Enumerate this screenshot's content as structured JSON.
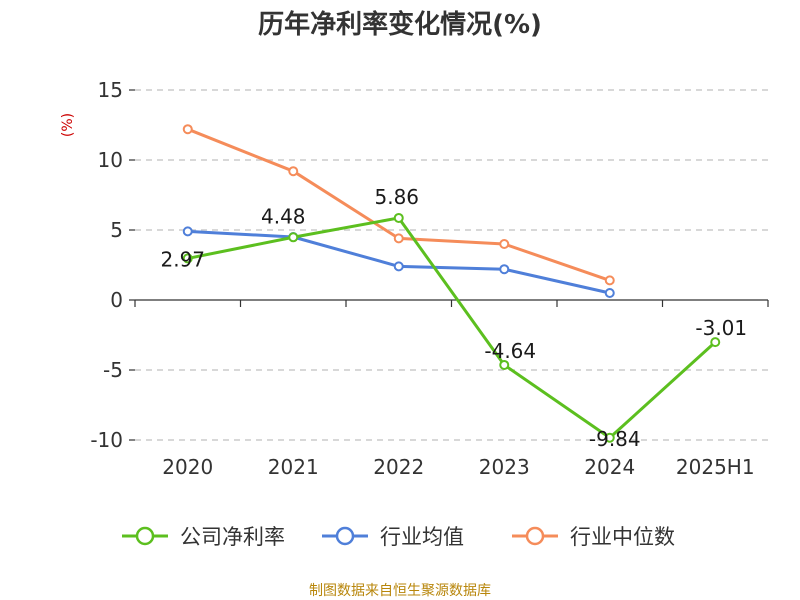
{
  "chart_data": {
    "type": "line",
    "title": "历年净利率变化情况(%)",
    "ylabel": "(%)",
    "categories": [
      "2020",
      "2021",
      "2022",
      "2023",
      "2024",
      "2025H1"
    ],
    "ylim": [
      -10,
      15
    ],
    "yticks": [
      15,
      10,
      5,
      0,
      -5,
      -10
    ],
    "grid": true,
    "legend_position": "bottom",
    "series": [
      {
        "name": "公司净利率",
        "color": "#5cbf1f",
        "values": [
          2.97,
          4.48,
          5.86,
          -4.64,
          -9.84,
          -3.01
        ],
        "labels": [
          "2.97",
          "4.48",
          "5.86",
          "-4.64",
          "-9.84",
          "-3.01"
        ]
      },
      {
        "name": "行业均值",
        "color": "#4f7fd9",
        "values": [
          4.9,
          4.5,
          2.4,
          2.2,
          0.5,
          null
        ]
      },
      {
        "name": "行业中位数",
        "color": "#f58c5a",
        "values": [
          12.2,
          9.2,
          4.4,
          4.0,
          1.4,
          null
        ]
      }
    ],
    "source": "制图数据来自恒生聚源数据库"
  }
}
